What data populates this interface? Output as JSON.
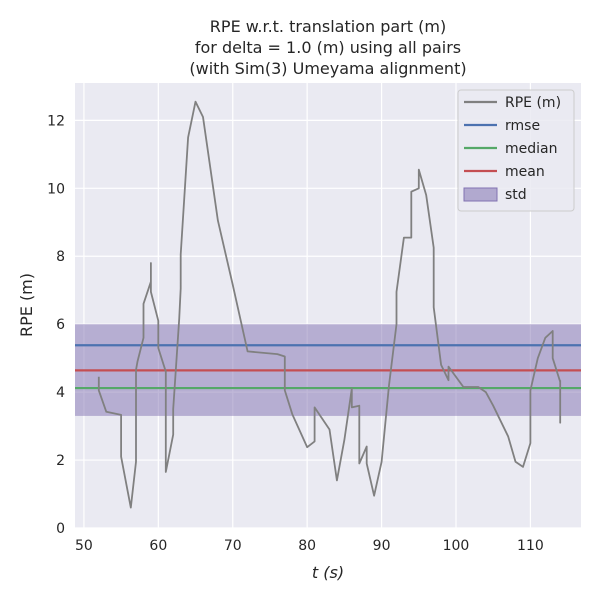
{
  "chart_data": {
    "type": "line",
    "title": [
      "RPE w.r.t. translation part (m)",
      "for delta = 1.0 (m) using all pairs",
      "(with Sim(3) Umeyama alignment)"
    ],
    "xlabel": "t (s)",
    "ylabel": "RPE (m)",
    "xlim": [
      48.8,
      116.8
    ],
    "ylim": [
      0,
      13.1
    ],
    "xticks": [
      50,
      60,
      70,
      80,
      90,
      100,
      110
    ],
    "yticks": [
      0,
      2,
      4,
      6,
      8,
      10,
      12
    ],
    "grid": true,
    "legend_position": "top-right",
    "colors": {
      "background": "#eaeaf2",
      "grid": "#ffffff",
      "rpe": "#808080",
      "rmse": "#4c72b0",
      "median": "#55a868",
      "mean": "#c44e52",
      "std": "#8172b2"
    },
    "legend": [
      {
        "key": "rpe",
        "label": "RPE (m)",
        "kind": "line"
      },
      {
        "key": "rmse",
        "label": "rmse",
        "kind": "line"
      },
      {
        "key": "median",
        "label": "median",
        "kind": "line"
      },
      {
        "key": "mean",
        "label": "mean",
        "kind": "line"
      },
      {
        "key": "std",
        "label": "std",
        "kind": "patch"
      }
    ],
    "stats": {
      "rmse": 5.38,
      "median": 4.12,
      "mean": 4.64,
      "std_band": [
        3.3,
        6.0
      ]
    },
    "series": [
      {
        "name": "RPE (m)",
        "x": [
          52,
          52,
          53,
          55,
          55,
          56.3,
          57,
          57,
          57.2,
          58,
          58,
          59,
          59,
          59,
          60,
          60,
          61,
          61,
          62,
          62,
          62.8,
          63,
          63,
          64,
          65,
          66,
          68,
          70,
          72,
          76,
          77,
          77,
          78,
          80,
          81,
          81,
          83,
          84,
          85,
          86,
          86,
          87,
          87,
          88,
          88,
          89,
          90,
          91,
          92,
          92,
          93,
          94,
          94,
          95,
          95,
          96,
          97,
          97,
          98,
          99,
          99,
          101,
          103,
          104,
          105,
          107,
          108,
          109,
          110,
          110,
          111,
          112,
          113,
          113,
          114,
          114,
          114
        ],
        "y": [
          4.45,
          4.05,
          3.42,
          3.33,
          2.1,
          0.6,
          1.95,
          4.65,
          4.9,
          5.6,
          6.6,
          7.25,
          7.8,
          6.95,
          6.1,
          5.3,
          4.6,
          1.65,
          2.75,
          3.5,
          6.15,
          7.05,
          8.05,
          11.5,
          12.55,
          12.1,
          9.05,
          7.15,
          5.2,
          5.12,
          5.05,
          4.05,
          3.35,
          2.38,
          2.55,
          3.55,
          2.9,
          1.4,
          2.6,
          4.1,
          3.55,
          3.6,
          1.9,
          2.4,
          1.9,
          0.95,
          1.95,
          4.2,
          6.0,
          6.95,
          8.55,
          8.55,
          9.9,
          10.0,
          10.55,
          9.8,
          8.25,
          6.5,
          4.8,
          4.35,
          4.75,
          4.15,
          4.15,
          4.0,
          3.6,
          2.7,
          1.95,
          1.8,
          2.5,
          4.05,
          5.0,
          5.6,
          5.8,
          5.0,
          4.3,
          3.1,
          4.35
        ]
      }
    ]
  }
}
